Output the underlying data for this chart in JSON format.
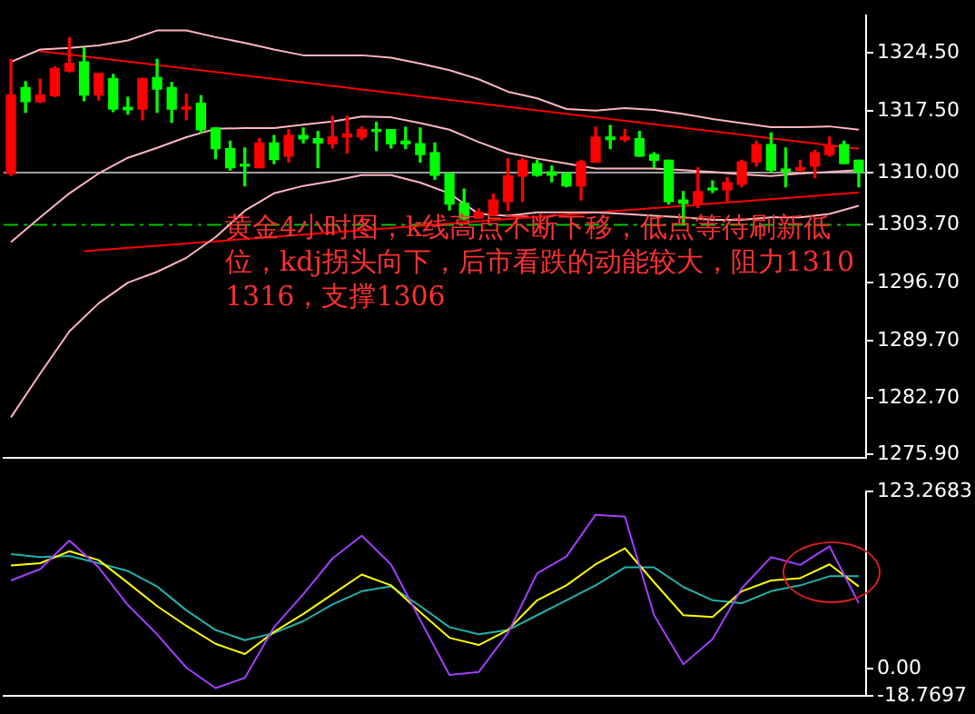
{
  "chart_data": [
    {
      "type": "candlestick",
      "categories": [
        null,
        null,
        null,
        null,
        null,
        null,
        null,
        null,
        null,
        null,
        null,
        null,
        null,
        null,
        null,
        null,
        null,
        null,
        null,
        null,
        null,
        null,
        null,
        null,
        null,
        null,
        null,
        null,
        null,
        null,
        null,
        null,
        null,
        null,
        null,
        null,
        null,
        null,
        null,
        null,
        null,
        null,
        null,
        null,
        null,
        null,
        null,
        null,
        null,
        null,
        null,
        null,
        null,
        null,
        null,
        null,
        null,
        null,
        null
      ],
      "ohlc": [
        [
          1309.9,
          1323.7,
          1309.7,
          1319.4
        ],
        [
          1320.3,
          1321.0,
          1317.3,
          1318.6
        ],
        [
          1318.6,
          1321.3,
          1318.5,
          1319.4
        ],
        [
          1319.3,
          1322.8,
          1319.2,
          1322.6
        ],
        [
          1322.3,
          1326.3,
          1322.2,
          1323.2
        ],
        [
          1323.4,
          1325.1,
          1318.7,
          1319.4
        ],
        [
          1319.4,
          1322.0,
          1318.8,
          1322.0
        ],
        [
          1321.4,
          1321.9,
          1317.4,
          1317.7
        ],
        [
          1317.9,
          1319.1,
          1317.1,
          1317.6
        ],
        [
          1317.7,
          1321.4,
          1316.4,
          1321.4
        ],
        [
          1321.5,
          1323.7,
          1317.3,
          1320.1
        ],
        [
          1320.3,
          1320.9,
          1316.1,
          1317.7
        ],
        [
          1317.7,
          1319.5,
          1316.4,
          1317.9
        ],
        [
          1318.4,
          1319.3,
          1314.8,
          1315.2
        ],
        [
          1315.4,
          1315.4,
          1311.7,
          1312.9
        ],
        [
          1312.9,
          1313.8,
          1310.3,
          1310.6
        ],
        [
          1311.0,
          1313.0,
          1308.4,
          1310.8
        ],
        [
          1310.6,
          1314.1,
          1310.6,
          1313.6
        ],
        [
          1313.6,
          1314.5,
          1311.1,
          1311.6
        ],
        [
          1312.0,
          1315.2,
          1311.3,
          1314.5
        ],
        [
          1314.5,
          1315.4,
          1313.6,
          1314.1
        ],
        [
          1314.1,
          1315.0,
          1310.6,
          1313.6
        ],
        [
          1313.5,
          1316.8,
          1313.0,
          1314.3
        ],
        [
          1314.3,
          1316.8,
          1312.4,
          1314.7
        ],
        [
          1314.3,
          1315.5,
          1314.0,
          1315.2
        ],
        [
          1315.2,
          1316.1,
          1312.7,
          1315.0
        ],
        [
          1315.2,
          1315.2,
          1313.0,
          1313.5
        ],
        [
          1313.8,
          1315.5,
          1312.9,
          1313.5
        ],
        [
          1313.5,
          1315.4,
          1311.3,
          1312.2
        ],
        [
          1312.4,
          1313.6,
          1309.2,
          1309.7
        ],
        [
          1309.9,
          1309.9,
          1305.5,
          1306.2
        ],
        [
          1306.3,
          1308.0,
          1304.3,
          1304.5
        ],
        [
          1304.5,
          1305.6,
          1304.5,
          1305.2
        ],
        [
          1304.9,
          1307.4,
          1304.8,
          1306.7
        ],
        [
          1306.5,
          1311.7,
          1305.5,
          1309.6
        ],
        [
          1309.6,
          1311.7,
          1306.5,
          1311.5
        ],
        [
          1311.1,
          1311.5,
          1309.6,
          1309.7
        ],
        [
          1310.1,
          1310.8,
          1308.9,
          1309.7
        ],
        [
          1309.9,
          1309.9,
          1308.3,
          1308.4
        ],
        [
          1308.4,
          1311.5,
          1306.7,
          1311.3
        ],
        [
          1311.3,
          1315.5,
          1311.3,
          1314.3
        ],
        [
          1314.3,
          1315.7,
          1312.9,
          1314.0
        ],
        [
          1314.0,
          1315.2,
          1313.8,
          1314.3
        ],
        [
          1314.1,
          1315.0,
          1312.0,
          1312.0
        ],
        [
          1312.2,
          1312.4,
          1310.6,
          1311.5
        ],
        [
          1311.5,
          1311.5,
          1306.2,
          1306.5
        ],
        [
          1306.7,
          1307.7,
          1303.7,
          1306.3
        ],
        [
          1306.2,
          1310.6,
          1305.8,
          1307.7
        ],
        [
          1308.1,
          1309.0,
          1307.6,
          1307.9
        ],
        [
          1307.9,
          1309.4,
          1306.5,
          1308.8
        ],
        [
          1308.6,
          1311.5,
          1308.3,
          1311.3
        ],
        [
          1311.3,
          1313.8,
          1310.8,
          1313.4
        ],
        [
          1313.4,
          1314.8,
          1310.1,
          1310.3
        ],
        [
          1310.4,
          1313.0,
          1308.3,
          1310.2
        ],
        [
          1310.3,
          1311.5,
          1310.1,
          1310.6
        ],
        [
          1310.8,
          1312.7,
          1309.4,
          1312.4
        ],
        [
          1312.2,
          1314.3,
          1312.0,
          1313.3
        ],
        [
          1313.4,
          1313.8,
          1311.1,
          1311.1
        ],
        [
          1311.5,
          1311.5,
          1308.3,
          1310.1
        ]
      ],
      "colors": [
        "#ff0000",
        "#00ff00",
        "#ff0000",
        "#ff0000",
        "#ff0000",
        "#00ff00",
        "#ff0000",
        "#00ff00",
        "#00ff00",
        "#ff0000",
        "#00ff00",
        "#00ff00",
        "#ff0000",
        "#00ff00",
        "#00ff00",
        "#00ff00",
        "#00ff00",
        "#ff0000",
        "#00ff00",
        "#ff0000",
        "#00ff00",
        "#00ff00",
        "#ff0000",
        "#ff0000",
        "#ff0000",
        "#00ff00",
        "#00ff00",
        "#00ff00",
        "#00ff00",
        "#00ff00",
        "#00ff00",
        "#00ff00",
        "#ff0000",
        "#ff0000",
        "#ff0000",
        "#ff0000",
        "#00ff00",
        "#00ff00",
        "#00ff00",
        "#ff0000",
        "#ff0000",
        "#00ff00",
        "#ff0000",
        "#00ff00",
        "#00ff00",
        "#00ff00",
        "#00ff00",
        "#ff0000",
        "#00ff00",
        "#ff0000",
        "#ff0000",
        "#ff0000",
        "#00ff00",
        "#00ff00",
        "#ff0000",
        "#ff0000",
        "#ff0000",
        "#00ff00",
        "#00ff00"
      ],
      "series": [
        {
          "type": "line",
          "color": "#ffb6c1",
          "values": [
            1323.4,
            null,
            1324.9,
            null,
            1325.1,
            null,
            1325.4,
            null,
            1326.0,
            null,
            1327.2,
            null,
            1327.2,
            null,
            1326.4,
            null,
            1325.7,
            null,
            1324.9,
            null,
            1324.2,
            null,
            1324.2,
            null,
            1324.2,
            null,
            1323.9,
            null,
            1323.2,
            null,
            1322.4,
            null,
            1321.3,
            null,
            1319.8,
            null,
            1319.0,
            null,
            1317.7,
            null,
            1317.5,
            null,
            1317.8,
            null,
            1317.6,
            null,
            1317.1,
            null,
            1316.5,
            null,
            1316.0,
            null,
            1315.5,
            null,
            1315.5,
            null,
            1315.6,
            null,
            1315.2
          ]
        },
        {
          "type": "line",
          "color": "#ffb6c1",
          "values": [
            1301.6,
            null,
            1304.6,
            null,
            1307.5,
            null,
            1309.9,
            null,
            1311.8,
            null,
            1313.0,
            null,
            1314.3,
            null,
            1315.3,
            null,
            1315.4,
            null,
            1315.4,
            null,
            1315.8,
            null,
            1316.2,
            null,
            1316.8,
            null,
            1316.7,
            null,
            1316.0,
            null,
            1315.2,
            null,
            1313.7,
            null,
            1312.4,
            null,
            1311.7,
            null,
            1311.1,
            null,
            1310.5,
            null,
            1310.5,
            null,
            1310.5,
            null,
            1310.3,
            null,
            1310.1,
            null,
            1309.8,
            null,
            1309.6,
            null,
            1309.9,
            null,
            1310.1,
            null,
            1310.3
          ]
        },
        {
          "type": "line",
          "color": "#ffb6c1",
          "values": [
            1280.4,
            null,
            1285.7,
            null,
            1290.8,
            null,
            1294.2,
            null,
            1296.7,
            null,
            1298.0,
            null,
            1299.7,
            null,
            1302.2,
            null,
            1305.4,
            null,
            1307.5,
            null,
            1308.4,
            null,
            1309.0,
            null,
            1309.7,
            null,
            1309.7,
            null,
            1308.8,
            null,
            1307.5,
            null,
            1305.0,
            null,
            1304.8,
            null,
            1305.2,
            null,
            1305.2,
            null,
            1305.2,
            null,
            1305.0,
            null,
            1304.8,
            null,
            1304.6,
            null,
            1304.3,
            null,
            1304.3,
            null,
            1304.6,
            null,
            1304.6,
            null,
            1305.0,
            null,
            1306.0
          ]
        },
        {
          "type": "line",
          "color": "#ff0000",
          "values": [
            null,
            null,
            1324.7,
            null,
            null,
            null,
            null,
            null,
            null,
            null,
            null,
            null,
            null,
            null,
            null,
            null,
            null,
            null,
            null,
            null,
            null,
            null,
            null,
            null,
            null,
            null,
            null,
            null,
            null,
            null,
            null,
            null,
            null,
            null,
            null,
            null,
            null,
            null,
            null,
            null,
            null,
            null,
            null,
            null,
            null,
            null,
            null,
            null,
            null,
            null,
            null,
            null,
            null,
            null,
            null,
            null,
            null,
            null,
            1312.9
          ]
        },
        {
          "type": "line",
          "color": "#ff0000",
          "values": [
            null,
            null,
            null,
            null,
            null,
            1300.5,
            null,
            null,
            null,
            null,
            null,
            null,
            null,
            null,
            null,
            null,
            null,
            null,
            null,
            null,
            null,
            null,
            null,
            null,
            null,
            null,
            null,
            null,
            null,
            null,
            null,
            null,
            null,
            null,
            null,
            null,
            null,
            null,
            null,
            null,
            null,
            null,
            null,
            null,
            null,
            null,
            null,
            null,
            null,
            null,
            null,
            null,
            null,
            null,
            null,
            null,
            null,
            null,
            1307.6
          ]
        }
      ],
      "ylim": [
        1275.5,
        1329
      ],
      "yticks": [
        {
          "value": 1324.5,
          "label": "1324.50"
        },
        {
          "value": 1317.5,
          "label": "1317.50"
        },
        {
          "value": 1310,
          "label": "1310.00"
        },
        {
          "value": 1303.7,
          "label": "1303.70"
        },
        {
          "value": 1296.7,
          "label": "1296.70"
        },
        {
          "value": 1289.7,
          "label": "1289.70"
        },
        {
          "value": 1282.7,
          "label": "1282.70"
        },
        {
          "value": 1275.9,
          "label": "1275.90"
        }
      ],
      "ref_lines": [
        {
          "axis": "y",
          "value": 1310,
          "color": "#a0a0a0",
          "line_style": "solid"
        },
        {
          "axis": "y",
          "value": 1303.7,
          "color": "#00c000",
          "line_style": "dashed"
        }
      ],
      "annotations": [
        "黄金4小时图，k线高点不断下移，低点等待刷新低位，kdj拐头向下，后市看跌的动能较大，阻力1310 1316，支撑1306"
      ],
      "tick_labels": "y",
      "grid": false,
      "legend": false
    },
    {
      "type": "line",
      "categories": [
        null,
        null,
        null,
        null,
        null,
        null,
        null,
        null,
        null,
        null,
        null,
        null,
        null,
        null,
        null,
        null,
        null,
        null,
        null,
        null,
        null,
        null,
        null,
        null,
        null,
        null,
        null,
        null,
        null,
        null,
        null,
        null,
        null,
        null,
        null,
        null,
        null,
        null,
        null,
        null,
        null,
        null,
        null,
        null,
        null,
        null,
        null,
        null,
        null,
        null,
        null,
        null,
        null,
        null,
        null,
        null,
        null,
        null,
        null
      ],
      "series": [
        {
          "color": "#a040ff",
          "values": [
            61.5,
            null,
            69.4,
            null,
            89.3,
            null,
            70.6,
            null,
            44.4,
            null,
            24.0,
            null,
            0.8,
            null,
            -13.4,
            null,
            -6.3,
            null,
            29.0,
            null,
            51.9,
            null,
            76.8,
            null,
            92.6,
            null,
            72.7,
            null,
            34.0,
            null,
            -4.2,
            null,
            -2.2,
            null,
            24.9,
            null,
            66.5,
            null,
            78.1,
            null,
            107.2,
            null,
            105.9,
            null,
            37.3,
            null,
            3.2,
            null,
            20.7,
            null,
            56.1,
            null,
            77.7,
            null,
            72.3,
            null,
            85.2,
            null,
            45.7
          ]
        },
        {
          "color": "#ffff00",
          "values": [
            71.9,
            null,
            73.5,
            null,
            81.8,
            null,
            75.6,
            null,
            59.8,
            null,
            43.6,
            null,
            29.9,
            null,
            17.4,
            null,
            10.3,
            null,
            25.7,
            null,
            38.2,
            null,
            51.9,
            null,
            65.6,
            null,
            58.1,
            null,
            39.4,
            null,
            21.6,
            null,
            16.6,
            null,
            27.0,
            null,
            47.7,
            null,
            58.1,
            null,
            72.7,
            null,
            83.9,
            null,
            60.2,
            null,
            37.3,
            null,
            36.1,
            null,
            54.0,
            null,
            61.5,
            null,
            63.1,
            null,
            72.7,
            null,
            57.3
          ]
        },
        {
          "color": "#20b2aa",
          "values": [
            79.8,
            null,
            77.7,
            null,
            78.5,
            null,
            73.5,
            null,
            68.1,
            null,
            57.3,
            null,
            40.7,
            null,
            27.0,
            null,
            19.9,
            null,
            24.9,
            null,
            33.2,
            null,
            44.8,
            null,
            54.0,
            null,
            57.3,
            null,
            43.6,
            null,
            29.0,
            null,
            24.0,
            null,
            27.0,
            null,
            37.3,
            null,
            47.7,
            null,
            58.1,
            null,
            70.6,
            null,
            70.6,
            null,
            56.9,
            null,
            47.7,
            null,
            45.7,
            null,
            54.0,
            null,
            58.1,
            null,
            64.4,
            null,
            64.4
          ]
        }
      ],
      "ylim": [
        -18.7697,
        123.2683
      ],
      "yticks": [
        {
          "value": 123.2683,
          "label": "123.2683"
        },
        {
          "value": 0,
          "label": "0.00"
        },
        {
          "value": -18.7697,
          "label": "-18.7697"
        }
      ],
      "tick_labels": "y",
      "grid": false,
      "legend": false,
      "marker": "none",
      "line_style": "solid"
    }
  ]
}
